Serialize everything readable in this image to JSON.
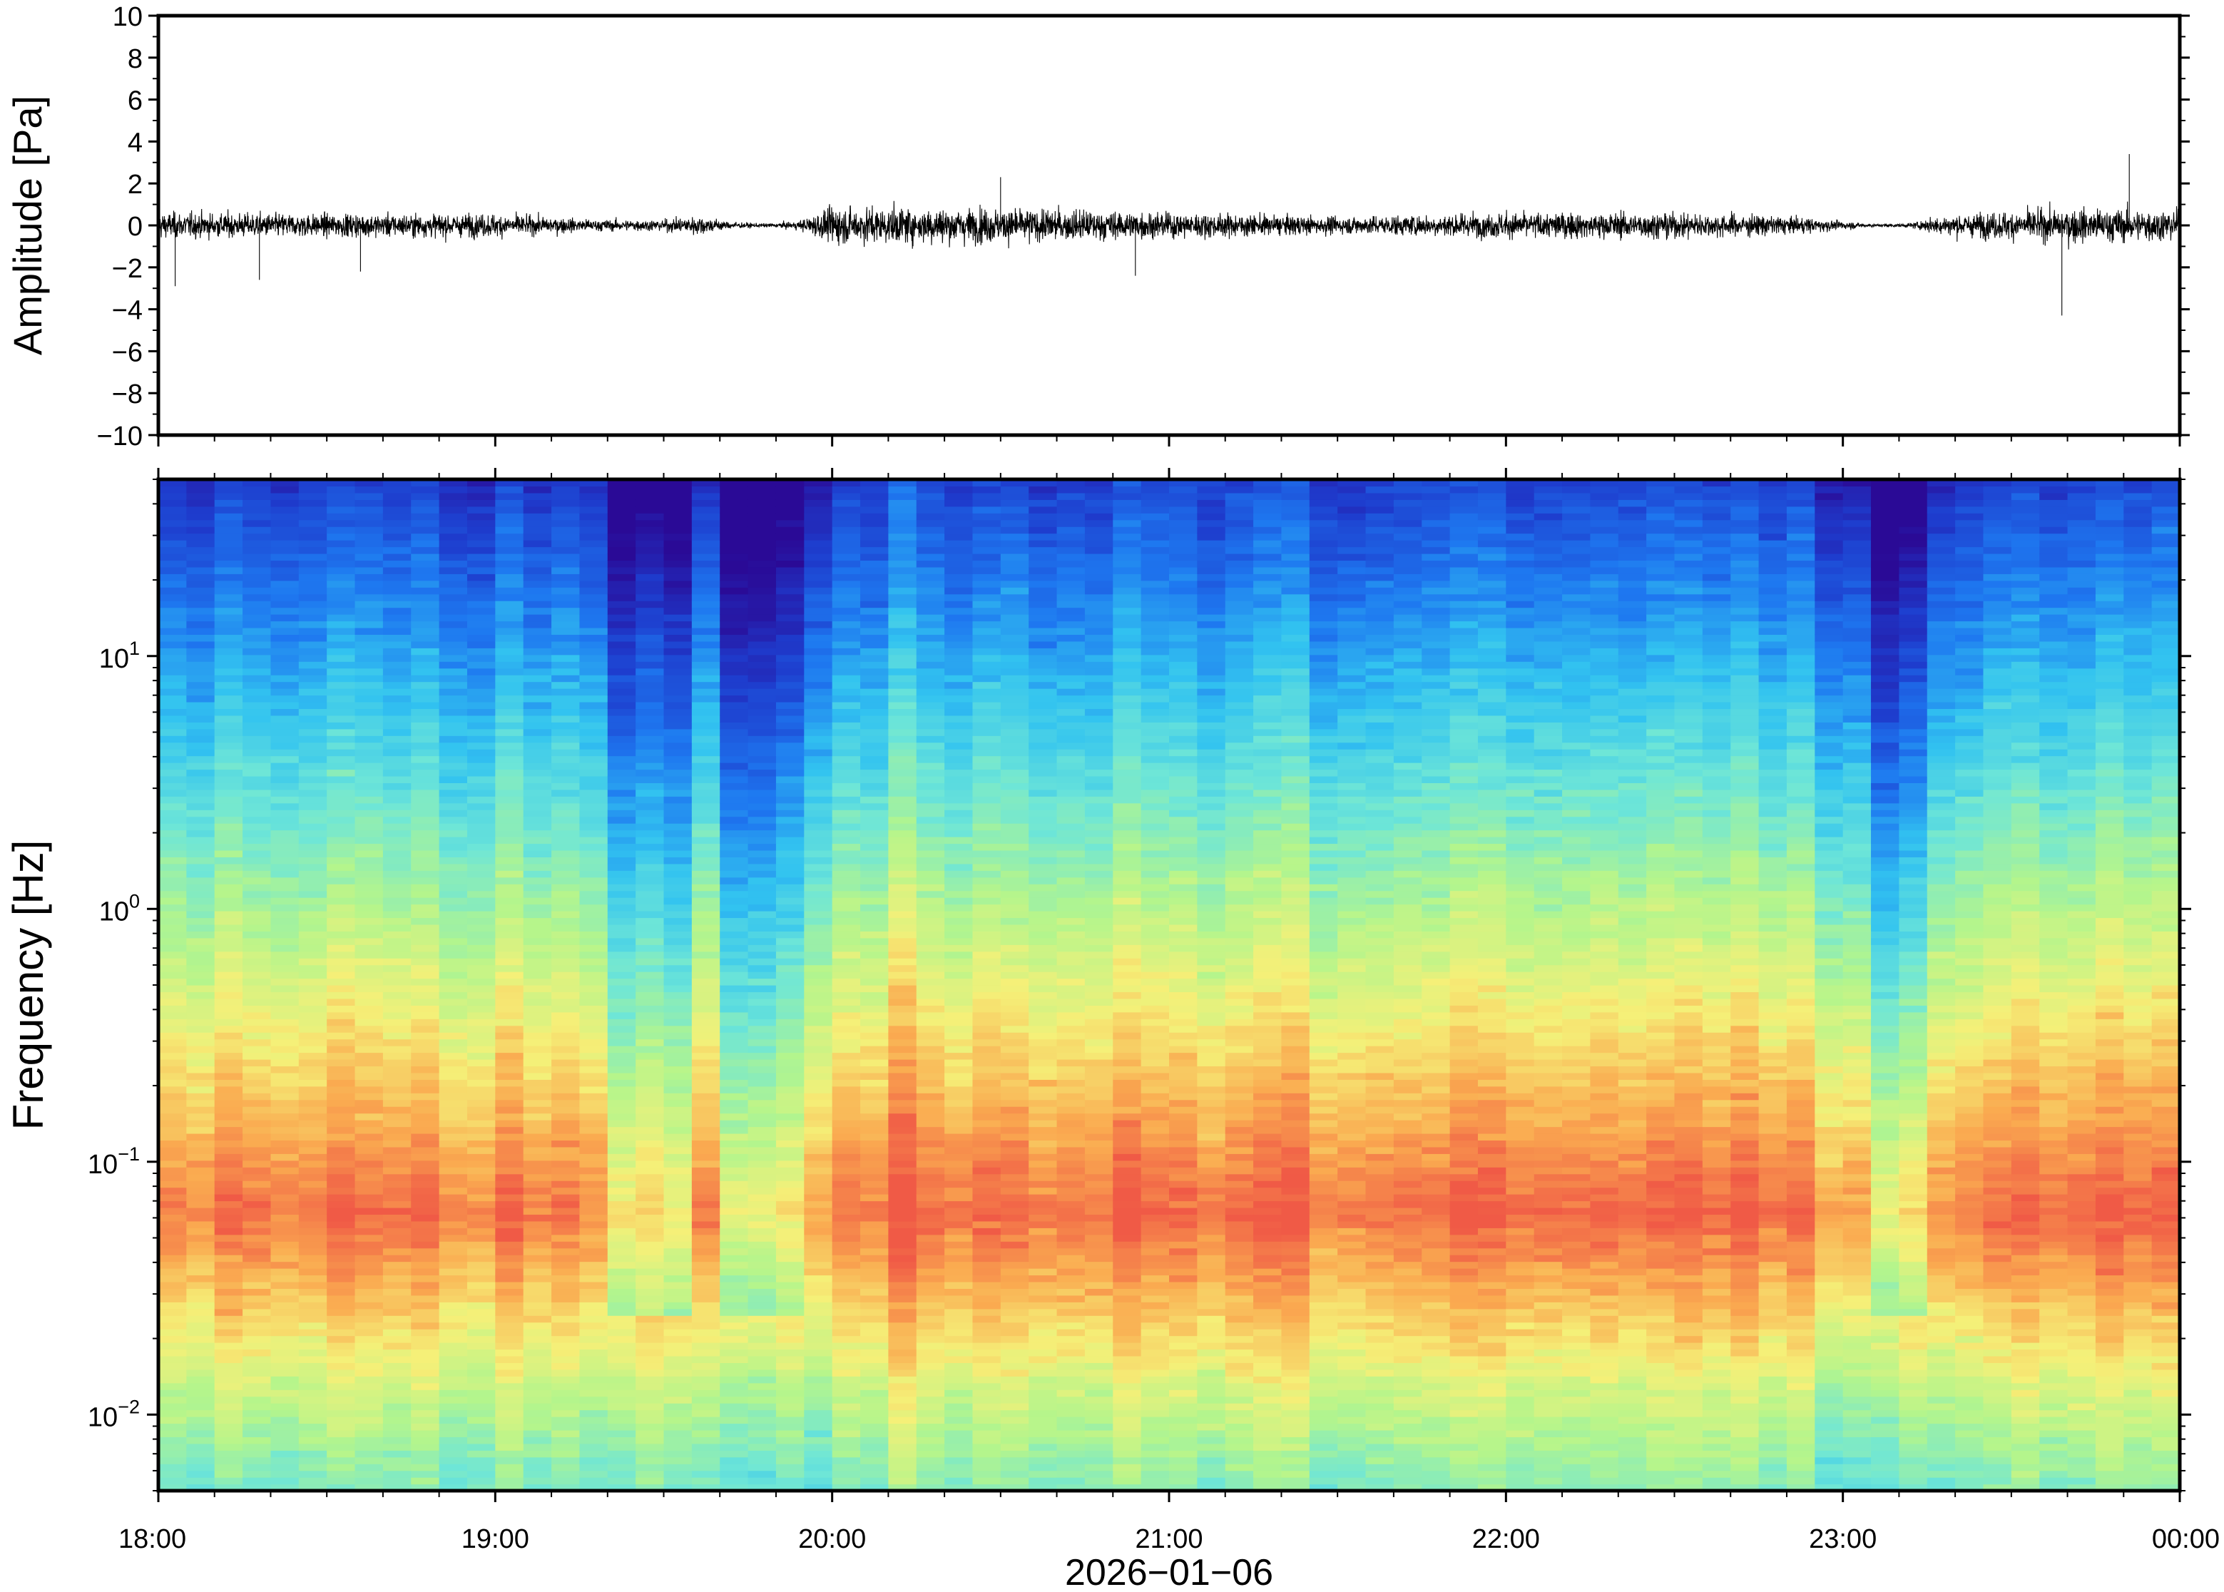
{
  "chart_data": [
    {
      "type": "line",
      "panel": "waveform",
      "ylabel": "Amplitude [Pa]",
      "ylim": [
        -10,
        10
      ],
      "yticks": [
        -10,
        -8,
        -6,
        -4,
        -2,
        0,
        2,
        4,
        6,
        8,
        10
      ],
      "ytick_labels": [
        "−10",
        "−8",
        "−6",
        "−4",
        "−2",
        "0",
        "2",
        "4",
        "6",
        "8",
        "10"
      ],
      "xlim_hours": [
        18,
        24
      ],
      "line_color": "#000000",
      "envelope": {
        "x_hours": [
          18.0,
          18.5,
          19.0,
          19.3,
          19.5,
          19.6,
          19.7,
          19.8,
          19.9,
          20.0,
          20.5,
          21.0,
          21.5,
          22.0,
          22.5,
          22.8,
          23.0,
          23.1,
          23.2,
          23.3,
          23.5,
          23.7,
          24.0
        ],
        "half_amplitude": [
          0.9,
          0.8,
          0.8,
          0.4,
          0.4,
          0.7,
          0.25,
          0.12,
          0.3,
          1.3,
          1.2,
          0.9,
          0.6,
          0.9,
          0.9,
          0.7,
          0.3,
          0.1,
          0.15,
          0.7,
          1.0,
          1.2,
          1.1
        ]
      },
      "spikes": [
        {
          "x_hours": 18.05,
          "value": -2.9
        },
        {
          "x_hours": 18.3,
          "value": -2.6
        },
        {
          "x_hours": 18.6,
          "value": -2.2
        },
        {
          "x_hours": 20.5,
          "value": 2.3
        },
        {
          "x_hours": 20.9,
          "value": -2.4
        },
        {
          "x_hours": 23.65,
          "value": -4.3
        },
        {
          "x_hours": 23.85,
          "value": 3.4
        }
      ],
      "grid": false
    },
    {
      "type": "heatmap",
      "panel": "spectrogram",
      "xlabel": "2026−01−06",
      "ylabel": "Frequency [Hz]",
      "yscale": "log",
      "ylim": [
        0.005,
        50
      ],
      "yticks": [
        0.01,
        0.1,
        1,
        10
      ],
      "ytick_labels": [
        {
          "base": "10",
          "exp": "−2"
        },
        {
          "base": "10",
          "exp": "−1"
        },
        {
          "base": "10",
          "exp": "0"
        },
        {
          "base": "10",
          "exp": "1"
        }
      ],
      "xlim_hours": [
        18,
        24
      ],
      "xticks_hours": [
        18,
        19,
        20,
        21,
        22,
        23,
        24
      ],
      "xtick_labels": [
        "18:00",
        "19:00",
        "20:00",
        "21:00",
        "22:00",
        "23:00",
        "00:00"
      ],
      "colormap": [
        "#2a0a96",
        "#1e3ccd",
        "#1e78f0",
        "#32c3f0",
        "#6ee6d7",
        "#b4f58c",
        "#f5f078",
        "#faaa50",
        "#f05a46"
      ],
      "grid": false,
      "quiet_intervals_hours": [
        [
          19.35,
          19.6
        ],
        [
          19.7,
          19.9
        ],
        [
          23.05,
          23.22
        ]
      ]
    }
  ]
}
